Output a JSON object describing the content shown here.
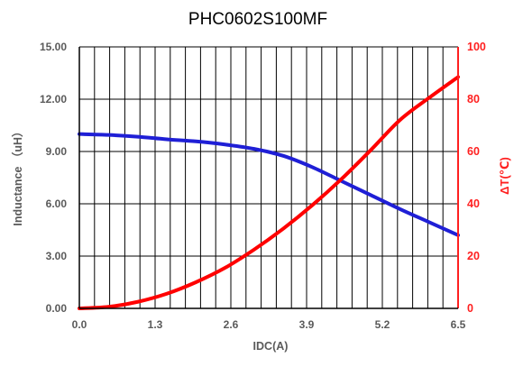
{
  "chart_data": {
    "type": "line",
    "title": "PHC0602S100MF",
    "xlabel": "IDC(A)",
    "ylabel_left": "Inductance （uH）",
    "ylabel_right": "ΔT(℃)",
    "xlim": [
      0,
      6.5
    ],
    "ylim_left": [
      0,
      15
    ],
    "ylim_right": [
      0,
      100
    ],
    "x_ticks": [
      "0.0",
      "1.3",
      "2.6",
      "3.9",
      "5.2",
      "6.5"
    ],
    "y_left_ticks": [
      "0.00",
      "3.00",
      "6.00",
      "9.00",
      "12.00",
      "15.00"
    ],
    "y_right_ticks": [
      "0",
      "20",
      "40",
      "60",
      "80",
      "100"
    ],
    "grid": true,
    "x_minor_divisions": 25,
    "colors": {
      "inductance": "#1f1fd6",
      "temperature": "#ff0000",
      "grid": "#000000",
      "right_axis": "#ff2020",
      "tick_text": "#5a5a5a"
    },
    "series": [
      {
        "axis": "left",
        "x": [
          0,
          0.5,
          1.0,
          1.5,
          2.0,
          2.5,
          3.0,
          3.5,
          4.0,
          4.5,
          5.0,
          5.5,
          6.0,
          6.5
        ],
        "y": [
          10.0,
          9.95,
          9.85,
          9.7,
          9.58,
          9.4,
          9.15,
          8.75,
          8.1,
          7.3,
          6.5,
          5.7,
          4.95,
          4.2
        ]
      },
      {
        "axis": "right",
        "x": [
          0,
          0.5,
          1.0,
          1.5,
          2.0,
          2.5,
          3.0,
          3.5,
          4.0,
          4.5,
          5.0,
          5.5,
          6.0,
          6.5
        ],
        "y": [
          0,
          0.6,
          2.5,
          5.6,
          10,
          15.5,
          22.5,
          30.5,
          39.5,
          49.5,
          60.5,
          72,
          80.5,
          88.5
        ]
      }
    ]
  }
}
